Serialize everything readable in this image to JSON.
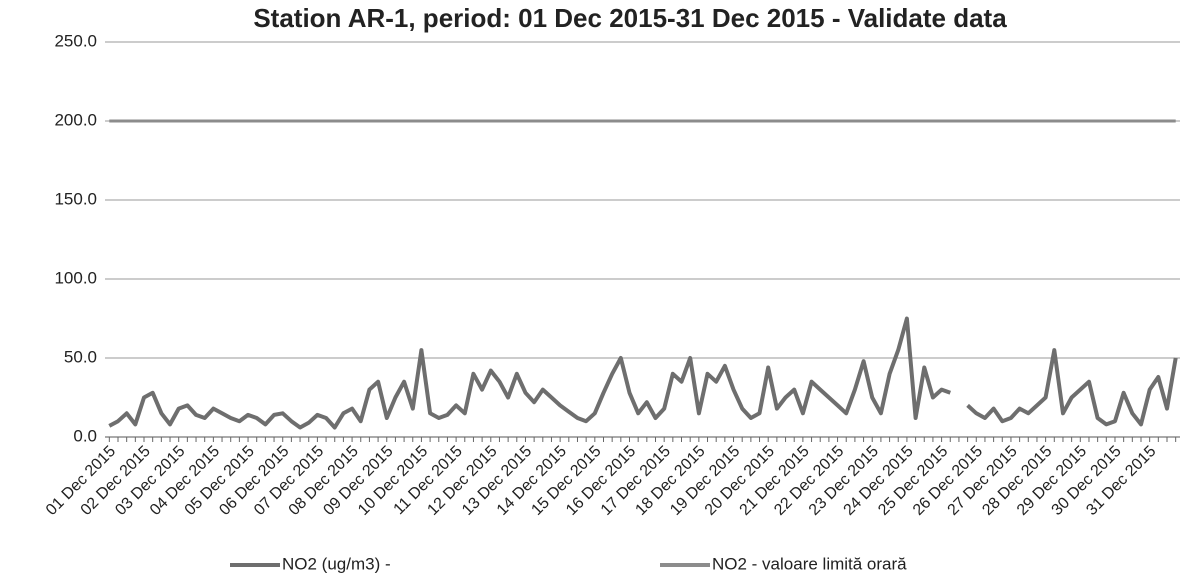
{
  "chart_data": {
    "type": "line",
    "title": "Station AR-1, period: 01 Dec 2015-31 Dec 2015 - Validate data",
    "categories": [
      "01 Dec 2015",
      null,
      null,
      null,
      "02 Dec 2015",
      null,
      null,
      null,
      "03 Dec 2015",
      null,
      null,
      null,
      "04 Dec 2015",
      null,
      null,
      null,
      "05 Dec 2015",
      null,
      null,
      null,
      "06 Dec 2015",
      null,
      null,
      null,
      "07 Dec 2015",
      null,
      null,
      null,
      "08 Dec 2015",
      null,
      null,
      null,
      "09 Dec 2015",
      null,
      null,
      null,
      "10 Dec 2015",
      null,
      null,
      null,
      "11 Dec 2015",
      null,
      null,
      null,
      "12 Dec 2015",
      null,
      null,
      null,
      "13 Dec 2015",
      null,
      null,
      null,
      "14 Dec 2015",
      null,
      null,
      null,
      "15 Dec 2015",
      null,
      null,
      null,
      "16 Dec 2015",
      null,
      null,
      null,
      "17 Dec 2015",
      null,
      null,
      null,
      "18 Dec 2015",
      null,
      null,
      null,
      "19 Dec 2015",
      null,
      null,
      null,
      "20 Dec 2015",
      null,
      null,
      null,
      "21 Dec 2015",
      null,
      null,
      null,
      "22 Dec 2015",
      null,
      null,
      null,
      "23 Dec 2015",
      null,
      null,
      null,
      "24 Dec 2015",
      null,
      null,
      null,
      "25 Dec 2015",
      null,
      null,
      null,
      "26 Dec 2015",
      null,
      null,
      null,
      "27 Dec 2015",
      null,
      null,
      null,
      "28 Dec 2015",
      null,
      null,
      null,
      "29 Dec 2015",
      null,
      null,
      null,
      "30 Dec 2015",
      null,
      null,
      null,
      "31 Dec 2015",
      null,
      null,
      null
    ],
    "series": [
      {
        "name": "NO2 (ug/m3)  -",
        "color": "#6e6e6e",
        "values": [
          7,
          10,
          15,
          8,
          25,
          28,
          15,
          8,
          18,
          20,
          14,
          12,
          18,
          15,
          12,
          10,
          14,
          12,
          8,
          14,
          15,
          10,
          6,
          9,
          14,
          12,
          6,
          15,
          18,
          10,
          30,
          35,
          12,
          25,
          35,
          18,
          55,
          15,
          12,
          14,
          20,
          15,
          40,
          30,
          42,
          35,
          25,
          40,
          28,
          22,
          30,
          25,
          20,
          16,
          12,
          10,
          15,
          28,
          40,
          50,
          28,
          15,
          22,
          12,
          18,
          40,
          35,
          50,
          15,
          40,
          35,
          45,
          30,
          18,
          12,
          15,
          44,
          18,
          25,
          30,
          15,
          35,
          30,
          25,
          20,
          15,
          30,
          48,
          25,
          15,
          40,
          55,
          75,
          12,
          44,
          25,
          30,
          28,
          null,
          20,
          15,
          12,
          18,
          10,
          12,
          18,
          15,
          20,
          25,
          55,
          15,
          25,
          30,
          35,
          12,
          8,
          10,
          28,
          15,
          8,
          30,
          38,
          18,
          50
        ]
      },
      {
        "name": "NO2 - valoare limită orară",
        "color": "#8c8c8c",
        "values": [
          200,
          200,
          200,
          200,
          200,
          200,
          200,
          200,
          200,
          200,
          200,
          200,
          200,
          200,
          200,
          200,
          200,
          200,
          200,
          200,
          200,
          200,
          200,
          200,
          200,
          200,
          200,
          200,
          200,
          200,
          200,
          200,
          200,
          200,
          200,
          200,
          200,
          200,
          200,
          200,
          200,
          200,
          200,
          200,
          200,
          200,
          200,
          200,
          200,
          200,
          200,
          200,
          200,
          200,
          200,
          200,
          200,
          200,
          200,
          200,
          200,
          200,
          200,
          200,
          200,
          200,
          200,
          200,
          200,
          200,
          200,
          200,
          200,
          200,
          200,
          200,
          200,
          200,
          200,
          200,
          200,
          200,
          200,
          200,
          200,
          200,
          200,
          200,
          200,
          200,
          200,
          200,
          200,
          200,
          200,
          200,
          200,
          200,
          200,
          200,
          200,
          200,
          200,
          200,
          200,
          200,
          200,
          200,
          200,
          200,
          200,
          200,
          200,
          200,
          200,
          200,
          200,
          200,
          200,
          200,
          200,
          200,
          200,
          200
        ]
      }
    ],
    "ylim": [
      0,
      250
    ],
    "yticks": [
      {
        "value": 0,
        "label": "0.0"
      },
      {
        "value": 50,
        "label": "50.0"
      },
      {
        "value": 100,
        "label": "100.0"
      },
      {
        "value": 150,
        "label": "150.0"
      },
      {
        "value": 200,
        "label": "200.0"
      },
      {
        "value": 250,
        "label": "250.0"
      }
    ],
    "grid": true
  }
}
